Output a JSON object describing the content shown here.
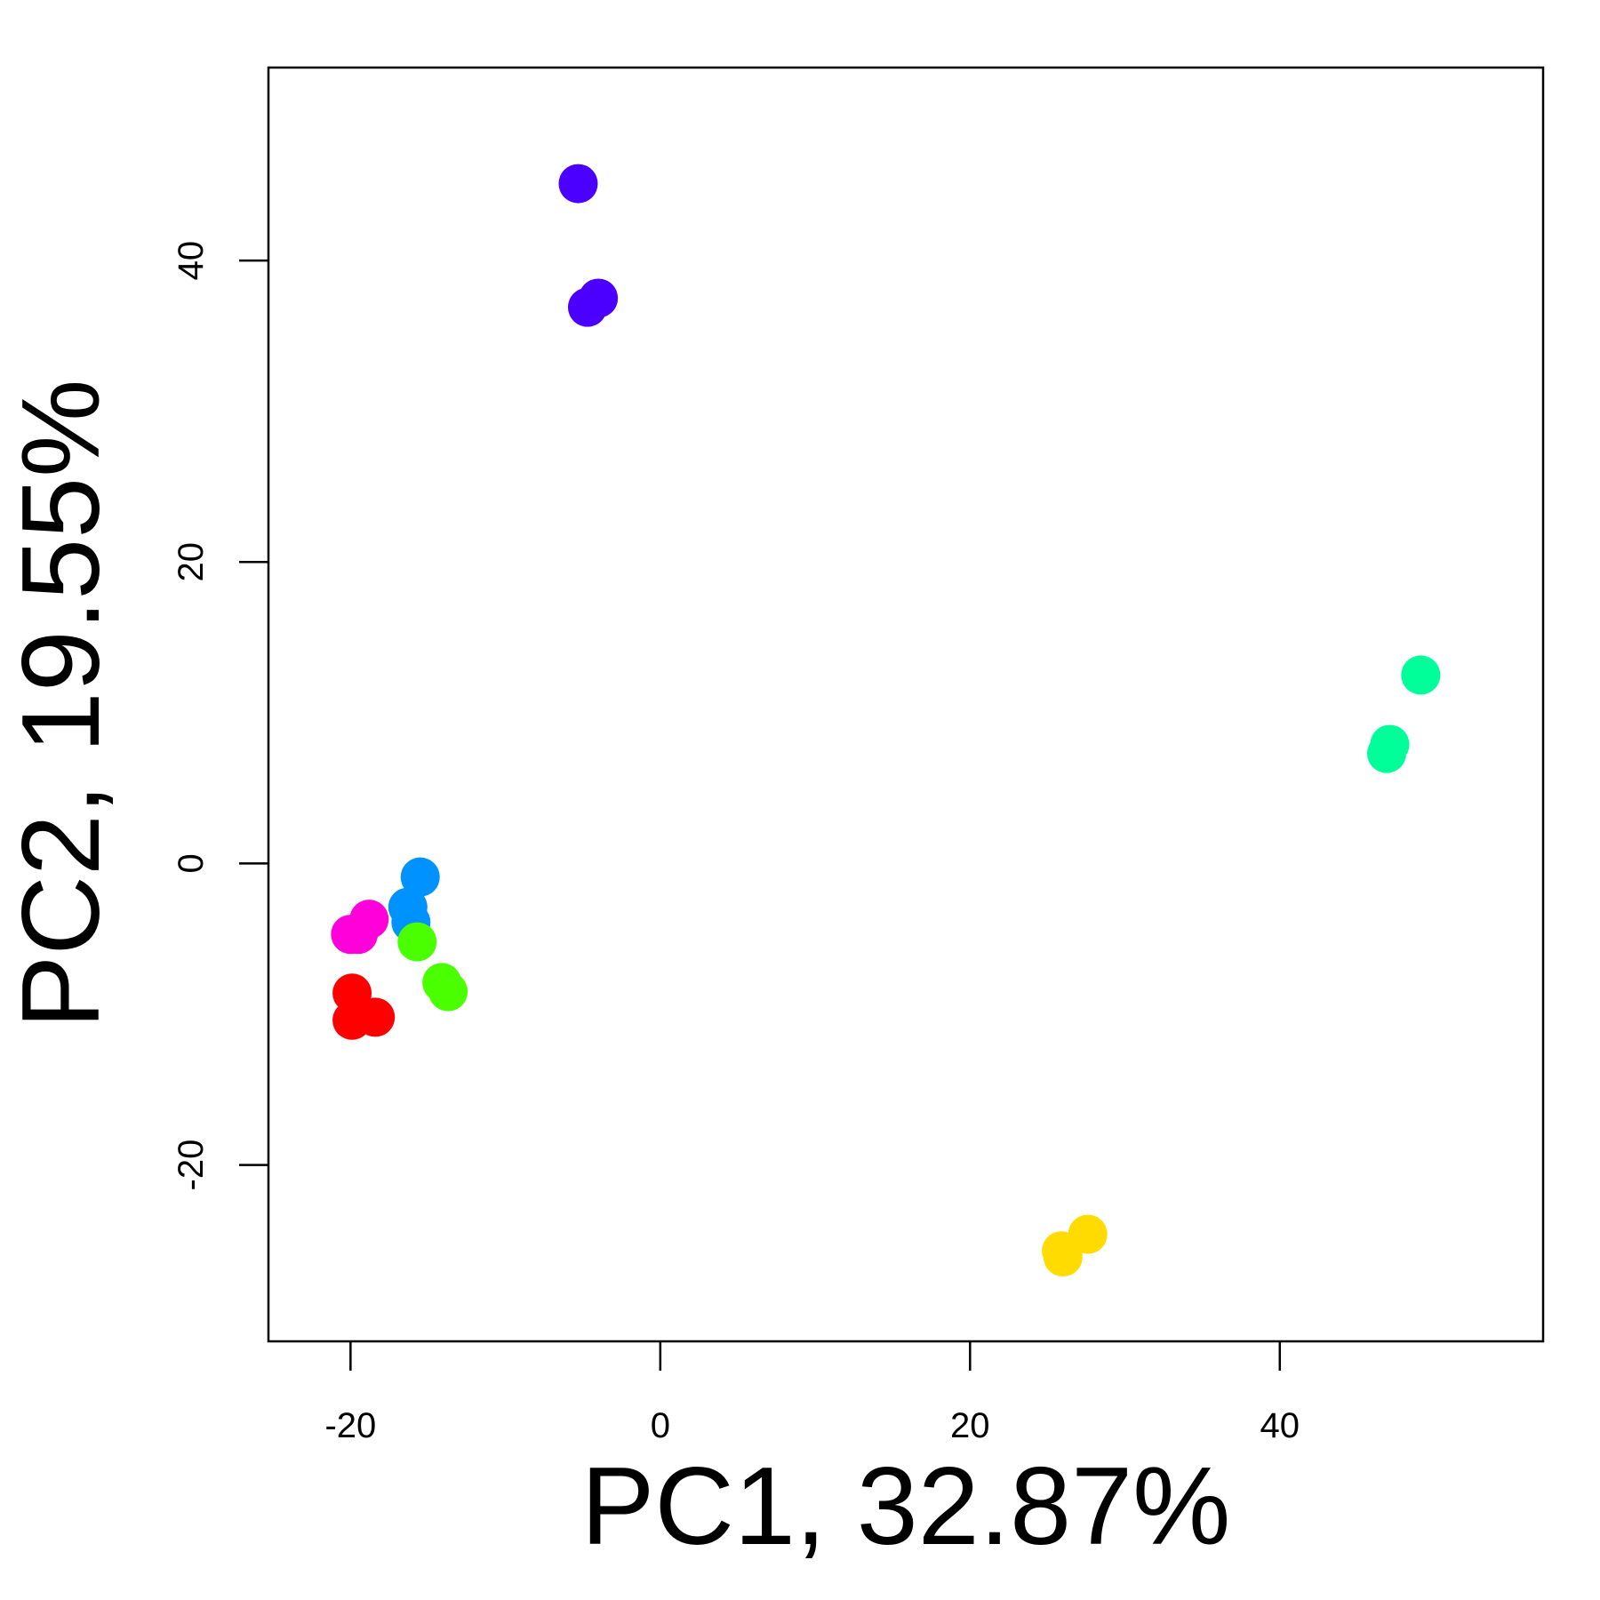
{
  "chart_data": {
    "type": "scatter",
    "xlabel": "PC1, 32.87%",
    "ylabel": "PC2, 19.55%",
    "xlim": [
      -25.3,
      57.0
    ],
    "ylim": [
      -31.7,
      52.8
    ],
    "x_ticks": [
      -20,
      0,
      20,
      40
    ],
    "y_ticks": [
      -20,
      0,
      20,
      40
    ],
    "x_tick_labels": [
      "-20",
      "0",
      "20",
      "40"
    ],
    "y_tick_labels": [
      "-20",
      "0",
      "20",
      "40"
    ],
    "grid": false,
    "legend": "none",
    "series": [
      {
        "color": "#4B00FF",
        "points": [
          [
            -5.3,
            45.1
          ],
          [
            -4.0,
            37.5
          ],
          [
            -4.7,
            36.9
          ]
        ]
      },
      {
        "color": "#00FF99",
        "points": [
          [
            49.1,
            12.5
          ],
          [
            47.1,
            7.9
          ],
          [
            46.9,
            7.3
          ]
        ]
      },
      {
        "color": "#FFDB00",
        "points": [
          [
            25.9,
            -25.7
          ],
          [
            27.6,
            -24.6
          ],
          [
            26.0,
            -26.1
          ]
        ]
      },
      {
        "color": "#0092FF",
        "points": [
          [
            -15.5,
            -0.9
          ],
          [
            -16.3,
            -2.9
          ],
          [
            -16.1,
            -3.9
          ]
        ]
      },
      {
        "color": "#49FF00",
        "points": [
          [
            -15.7,
            -5.2
          ],
          [
            -14.1,
            -7.9
          ],
          [
            -13.7,
            -8.5
          ]
        ]
      },
      {
        "color": "#FF00DB",
        "points": [
          [
            -20.0,
            -4.7
          ],
          [
            -18.8,
            -3.7
          ],
          [
            -19.5,
            -4.7
          ]
        ]
      },
      {
        "color": "#FF0000",
        "points": [
          [
            -19.9,
            -8.6
          ],
          [
            -18.4,
            -10.2
          ],
          [
            -19.9,
            -10.4
          ]
        ]
      }
    ]
  }
}
